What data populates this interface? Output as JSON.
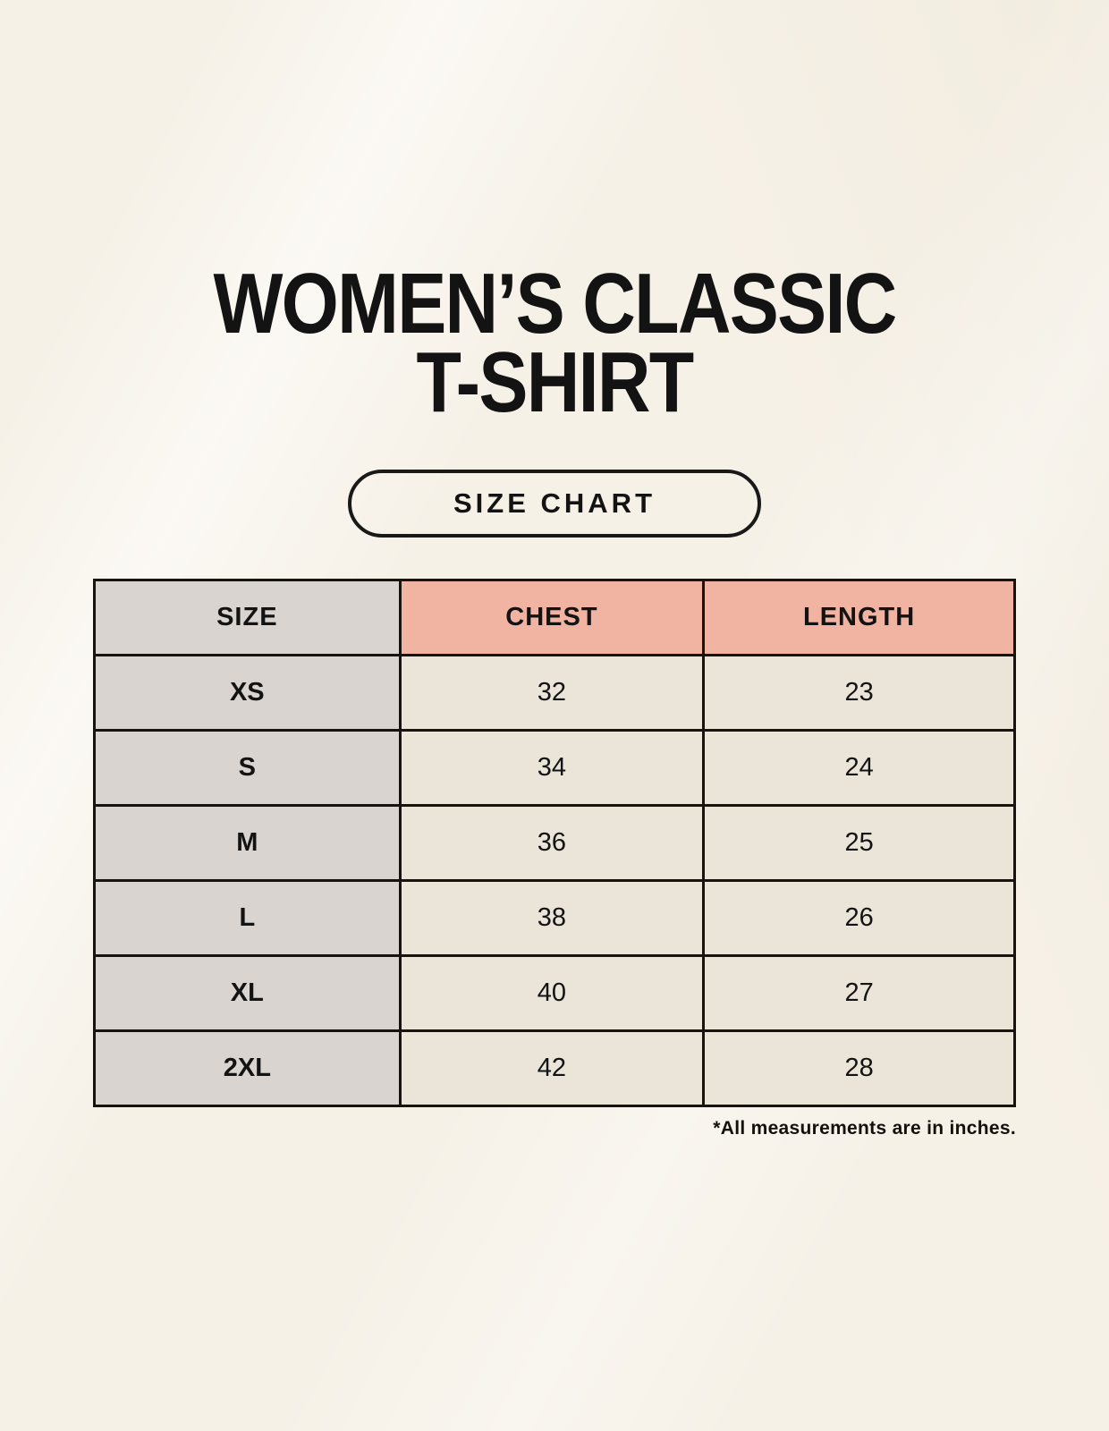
{
  "page": {
    "title_line1": "WOMEN’S CLASSIC",
    "title_line2": "T-SHIRT",
    "button_label": "SIZE CHART",
    "footnote": "*All measurements are in inches."
  },
  "colors": {
    "background_cream": "#f6f1e7",
    "header_salmon": "#f1b4a2",
    "size_column_gray": "#d9d4d0",
    "data_cell_beige": "#eae4d9",
    "border_black": "#17140f",
    "text_black": "#131313"
  },
  "chart_data": {
    "type": "table",
    "title": "Women’s Classic T-Shirt Size Chart",
    "columns": [
      "SIZE",
      "CHEST",
      "LENGTH"
    ],
    "units": "inches",
    "rows": [
      {
        "size": "XS",
        "chest": 32,
        "length": 23
      },
      {
        "size": "S",
        "chest": 34,
        "length": 24
      },
      {
        "size": "M",
        "chest": 36,
        "length": 25
      },
      {
        "size": "L",
        "chest": 38,
        "length": 26
      },
      {
        "size": "XL",
        "chest": 40,
        "length": 27
      },
      {
        "size": "2XL",
        "chest": 42,
        "length": 28
      }
    ]
  }
}
